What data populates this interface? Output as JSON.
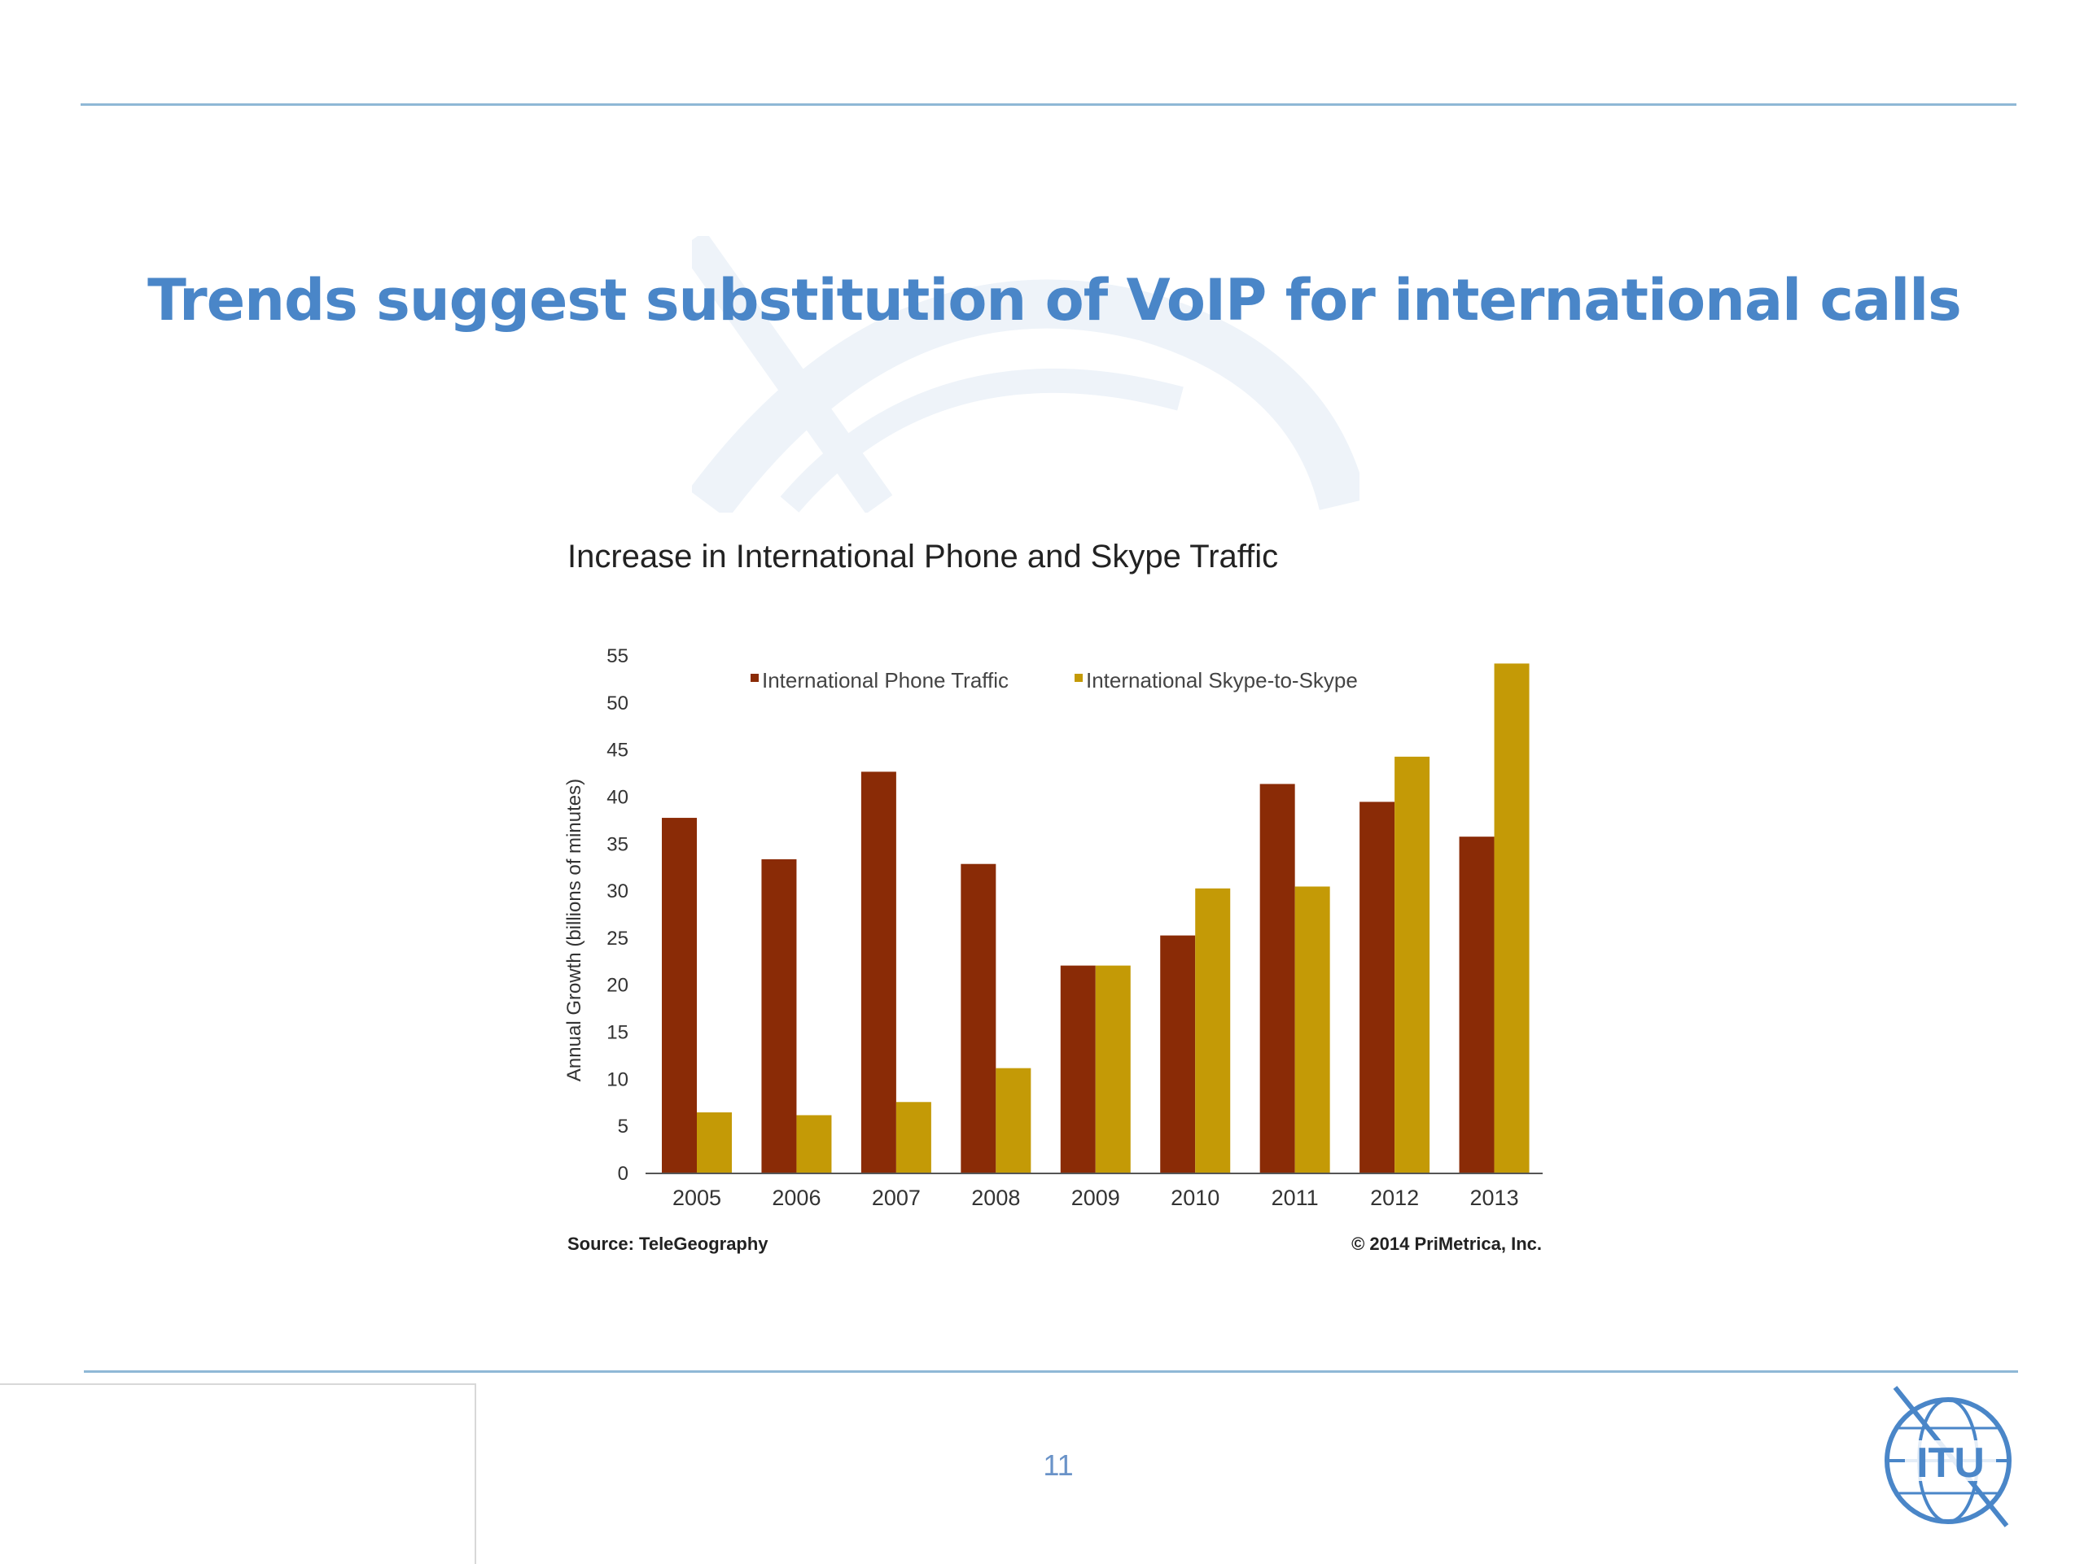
{
  "slide": {
    "title": "Trends suggest substitution of VoIP for international calls",
    "page_number": "11",
    "logo_text": "ITU"
  },
  "notes": {
    "source": "Source: TeleGeography",
    "copyright": "© 2014 PriMetrica, Inc."
  },
  "colors": {
    "title": "#4a86c8",
    "rule": "#8fb8d6",
    "phone": "#8a2b06",
    "skype": "#c49a06"
  },
  "chart_data": {
    "type": "bar",
    "title": "Increase in International Phone and Skype Traffic",
    "ylabel": "Annual Growth (billions of minutes)",
    "xlabel": "",
    "categories": [
      "2005",
      "2006",
      "2007",
      "2008",
      "2009",
      "2010",
      "2011",
      "2012",
      "2013"
    ],
    "series": [
      {
        "name": "International Phone Traffic",
        "color": "#8a2b06",
        "values": [
          37.7,
          33.3,
          42.6,
          32.8,
          22,
          25.2,
          41.3,
          39.4,
          35.7
        ]
      },
      {
        "name": "International Skype-to-Skype",
        "color": "#c49a06",
        "values": [
          6.4,
          6.1,
          7.5,
          11.1,
          22,
          30.2,
          30.4,
          44.2,
          54.1
        ]
      }
    ],
    "ylim": [
      0,
      55
    ],
    "yticks": [
      "0",
      "5",
      "10",
      "15",
      "20",
      "25",
      "30",
      "35",
      "40",
      "45",
      "50",
      "55"
    ],
    "grid": false,
    "legend": "top"
  }
}
